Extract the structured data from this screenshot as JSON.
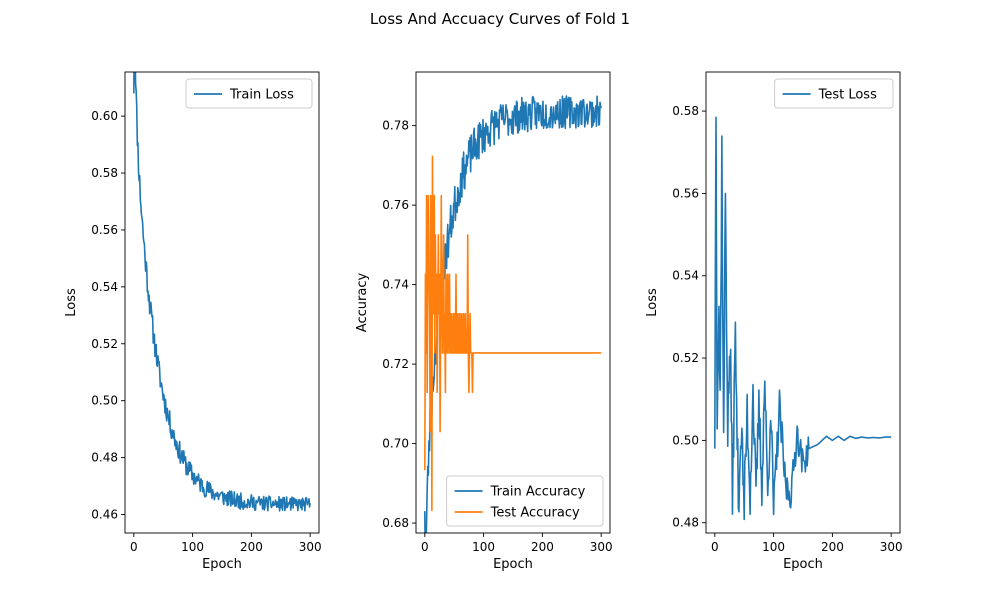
{
  "figure": {
    "title": "Loss And Accuacy Curves of Fold 1"
  },
  "chart_data": [
    {
      "type": "line",
      "xlabel": "Epoch",
      "ylabel": "Loss",
      "xlim": [
        -15,
        315
      ],
      "ylim": [
        0.4535,
        0.6155
      ],
      "xticks": [
        0,
        100,
        200,
        300
      ],
      "yticks": [
        0.46,
        0.48,
        0.5,
        0.52,
        0.54,
        0.56,
        0.58,
        0.6
      ],
      "ytick_labels": [
        "0.46",
        "0.48",
        "0.50",
        "0.52",
        "0.54",
        "0.56",
        "0.58",
        "0.60"
      ],
      "legend": "top-right",
      "series": [
        {
          "name": "Train Loss",
          "color": "#1f77b4",
          "curve": {
            "start": 0.608,
            "end": 0.4635,
            "tau": 38,
            "fast_amp": 0.05,
            "fast_tau": 3,
            "noise": 0.0035,
            "noise_decay": 140,
            "seed": 11
          }
        }
      ]
    },
    {
      "type": "line",
      "xlabel": "Epoch",
      "ylabel": "Accuracy",
      "xlim": [
        -15,
        315
      ],
      "ylim": [
        0.6775,
        0.7935
      ],
      "xticks": [
        0,
        100,
        200,
        300
      ],
      "yticks": [
        0.68,
        0.7,
        0.72,
        0.74,
        0.76,
        0.78
      ],
      "ytick_labels": [
        "0.68",
        "0.70",
        "0.72",
        "0.74",
        "0.76",
        "0.78"
      ],
      "legend": "bottom-right",
      "series": [
        {
          "name": "Train Accuracy",
          "color": "#1f77b4",
          "curve": {
            "start": 0.683,
            "end": 0.7835,
            "tau": 35,
            "fast_amp": -0.03,
            "fast_tau": 3,
            "noise": 0.004,
            "noise_decay": 400,
            "seed": 23
          }
        },
        {
          "name": "Test Accuracy",
          "color": "#ff7f0e",
          "steps": {
            "x": [
              0,
              1,
              2,
              3,
              4,
              5,
              6,
              7,
              8,
              9,
              10,
              11,
              12,
              13,
              14,
              15,
              16,
              17,
              18,
              19,
              20,
              21,
              22,
              23,
              24,
              25,
              26,
              27,
              28,
              29,
              30,
              31,
              32,
              33,
              34,
              35,
              36,
              37,
              38,
              39,
              40,
              41,
              42,
              43,
              44,
              45,
              46,
              47,
              48,
              49,
              50,
              51,
              52,
              53,
              54,
              55,
              56,
              57,
              58,
              59,
              60,
              61,
              62,
              63,
              64,
              65,
              66,
              67,
              68,
              69,
              70,
              71,
              72,
              73,
              74,
              75,
              76,
              77,
              78,
              79,
              80,
              81,
              82,
              83,
              84,
              85,
              86,
              87,
              88,
              89,
              90,
              91,
              92,
              93,
              94,
              95,
              96,
              97,
              98,
              99,
              100,
              101,
              102,
              103,
              104,
              105,
              106,
              107,
              108,
              109,
              110,
              111,
              112,
              113,
              114,
              115,
              116,
              117,
              118,
              119,
              120,
              121,
              122,
              123,
              124,
              125,
              126,
              127,
              128,
              129,
              130,
              131,
              132,
              133,
              134,
              135,
              136,
              137,
              138,
              139,
              140,
              141,
              142,
              143,
              144,
              145,
              146,
              147,
              148,
              149,
              150,
              151,
              152,
              153,
              154,
              155,
              156,
              157,
              158,
              159,
              160,
              300
            ],
            "y": [
              0.6933,
              0.7426,
              0.7228,
              0.7624,
              0.7129,
              0.7525,
              0.7624,
              0.7426,
              0.7327,
              0.703,
              0.7624,
              0.7426,
              0.6832,
              0.7723,
              0.7327,
              0.7525,
              0.7624,
              0.7228,
              0.7525,
              0.7327,
              0.7426,
              0.7129,
              0.7327,
              0.7525,
              0.7327,
              0.7426,
              0.703,
              0.7327,
              0.7624,
              0.7327,
              0.7228,
              0.7426,
              0.7525,
              0.7228,
              0.7327,
              0.7129,
              0.7426,
              0.7327,
              0.7228,
              0.7426,
              0.7327,
              0.7228,
              0.7426,
              0.7228,
              0.7327,
              0.7228,
              0.7327,
              0.7228,
              0.7228,
              0.7327,
              0.7228,
              0.7327,
              0.7228,
              0.7426,
              0.7228,
              0.7327,
              0.7228,
              0.7228,
              0.7327,
              0.7228,
              0.7327,
              0.7228,
              0.7228,
              0.7327,
              0.7228,
              0.7228,
              0.7327,
              0.7228,
              0.7228,
              0.7327,
              0.7228,
              0.7228,
              0.7228,
              0.7525,
              0.7228,
              0.7129,
              0.7228,
              0.7327,
              0.7228,
              0.7228,
              0.7228,
              0.7129,
              0.7228,
              0.7228,
              0.7228,
              0.7228,
              0.7228,
              0.7228,
              0.7228,
              0.7228,
              0.7228,
              0.7228,
              0.7228,
              0.7228,
              0.7228,
              0.7228,
              0.7228,
              0.7228,
              0.7228,
              0.7228,
              0.7228,
              0.7228,
              0.7228,
              0.7228,
              0.7228,
              0.7228,
              0.7228,
              0.7228,
              0.7228,
              0.7228,
              0.7228,
              0.7228,
              0.7228,
              0.7228,
              0.7228,
              0.7228,
              0.7228,
              0.7228,
              0.7228,
              0.7228,
              0.7228,
              0.7228,
              0.7228,
              0.7228,
              0.7228,
              0.7228,
              0.7228,
              0.7228,
              0.7228,
              0.7228,
              0.7228,
              0.7228,
              0.7228,
              0.7228,
              0.7228,
              0.7228,
              0.7228,
              0.7228,
              0.7228,
              0.7228,
              0.7228,
              0.7228,
              0.7228,
              0.7228,
              0.7228,
              0.7228,
              0.7228,
              0.7228,
              0.7228,
              0.7228,
              0.7228,
              0.7228,
              0.7228,
              0.7228,
              0.7228,
              0.7228,
              0.7228,
              0.7228,
              0.7228,
              0.7228,
              0.7228,
              0.7228
            ]
          }
        }
      ]
    },
    {
      "type": "line",
      "xlabel": "Epoch",
      "ylabel": "Loss",
      "xlim": [
        -15,
        315
      ],
      "ylim": [
        0.4775,
        0.5895
      ],
      "xticks": [
        0,
        100,
        200,
        300
      ],
      "yticks": [
        0.48,
        0.5,
        0.52,
        0.54,
        0.56,
        0.58
      ],
      "ytick_labels": [
        "0.48",
        "0.50",
        "0.52",
        "0.54",
        "0.56",
        "0.58"
      ],
      "legend": "top-right",
      "series": [
        {
          "name": "Test Loss",
          "color": "#1f77b4",
          "anchors": {
            "x": [
              0,
              2,
              4,
              7,
              9,
              12,
              15,
              18,
              22,
              26,
              30,
              35,
              40,
              45,
              50,
              55,
              60,
              65,
              70,
              75,
              80,
              85,
              90,
              95,
              100,
              110,
              120,
              130,
              140,
              150,
              160,
              175,
              190,
              200,
              210,
              220,
              230,
              240,
              250,
              260,
              270,
              280,
              290,
              300
            ],
            "y": [
              0.502,
              0.584,
              0.51,
              0.532,
              0.509,
              0.57,
              0.498,
              0.561,
              0.503,
              0.524,
              0.488,
              0.525,
              0.486,
              0.503,
              0.484,
              0.507,
              0.487,
              0.512,
              0.486,
              0.508,
              0.489,
              0.515,
              0.486,
              0.509,
              0.483,
              0.508,
              0.489,
              0.487,
              0.502,
              0.494,
              0.498,
              0.499,
              0.501,
              0.5,
              0.501,
              0.5,
              0.501,
              0.5005,
              0.5008,
              0.5006,
              0.5007,
              0.5006,
              0.5008,
              0.5008
            ]
          },
          "noise": 0.008,
          "noise_until": 160,
          "seed": 37
        }
      ]
    }
  ]
}
